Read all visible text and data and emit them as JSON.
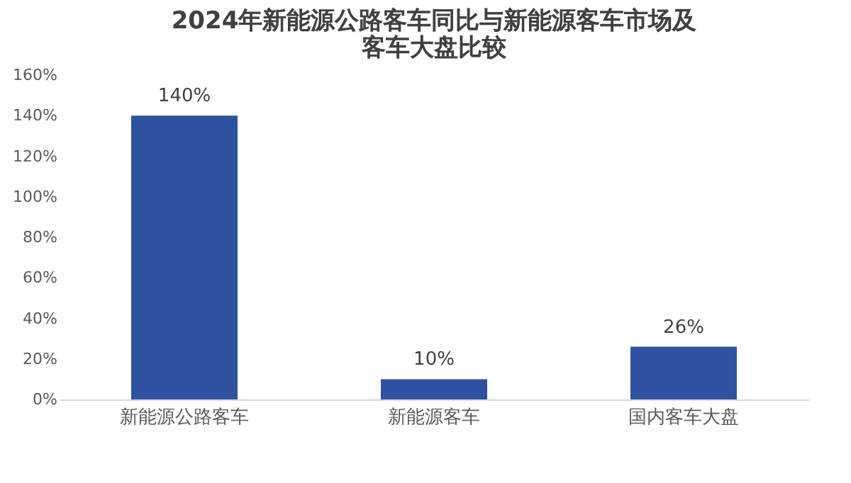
{
  "chart_data": {
    "type": "bar",
    "title": "2024年新能源公路客车同比与新能源客车市场及客车大盘比较",
    "categories": [
      "新能源公路客车",
      "新能源客车",
      "国内客车大盘"
    ],
    "values": [
      140,
      10,
      26
    ],
    "color": "#2f52a0",
    "value_labels": [
      "140%",
      "10%",
      "26%"
    ],
    "ylim": [
      0,
      160
    ],
    "yticks": [
      {
        "value": 0,
        "label": "0%"
      },
      {
        "value": 20,
        "label": "20%"
      },
      {
        "value": 40,
        "label": "40%"
      },
      {
        "value": 60,
        "label": "60%"
      },
      {
        "value": 80,
        "label": "80%"
      },
      {
        "value": 100,
        "label": "100%"
      },
      {
        "value": 120,
        "label": "120%"
      },
      {
        "value": 140,
        "label": "140%"
      },
      {
        "value": 160,
        "label": "160%"
      }
    ],
    "grid": false
  }
}
